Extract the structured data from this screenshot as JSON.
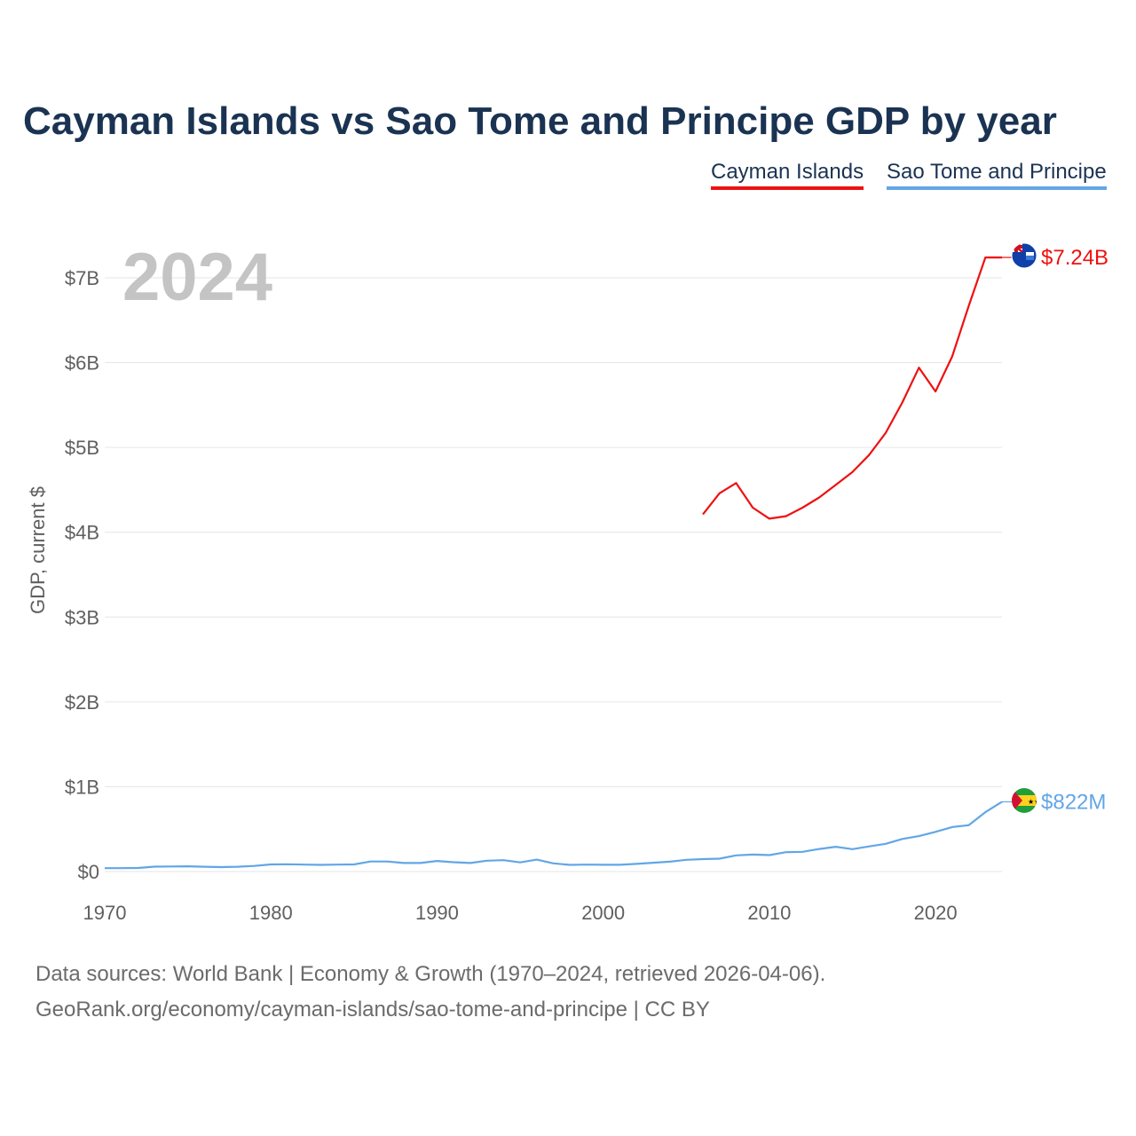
{
  "title": "Cayman Islands vs Sao Tome and Principe GDP by year",
  "legend": {
    "a": "Cayman Islands",
    "b": "Sao Tome and Principe"
  },
  "year_label": "2024",
  "source_line1": "Data sources: World Bank | Economy & Growth (1970–2024, retrieved 2026-04-06).",
  "source_line2": "GeoRank.org/economy/cayman-islands/sao-tome-and-principe | CC BY",
  "colors": {
    "cayman": "#ee1111",
    "sao_tome": "#62a6e6",
    "title": "#1b3352",
    "grid": "#e6e6e6",
    "axis_text": "#5f5f5f",
    "year_watermark": "#c4c4c4"
  },
  "chart_data": {
    "type": "line",
    "title": "Cayman Islands vs Sao Tome and Principe GDP by year",
    "xlabel": "",
    "ylabel": "GDP, current $",
    "xlim": [
      1970,
      2024
    ],
    "ylim": [
      0,
      7.5
    ],
    "y_unit": "billion USD",
    "x_ticks": [
      1970,
      1980,
      1990,
      2000,
      2010,
      2020
    ],
    "y_ticks": [
      {
        "value": 0,
        "label": "$0"
      },
      {
        "value": 1,
        "label": "$1B"
      },
      {
        "value": 2,
        "label": "$2B"
      },
      {
        "value": 3,
        "label": "$3B"
      },
      {
        "value": 4,
        "label": "$4B"
      },
      {
        "value": 5,
        "label": "$5B"
      },
      {
        "value": 6,
        "label": "$6B"
      },
      {
        "value": 7,
        "label": "$7B"
      }
    ],
    "grid": true,
    "legend_position": "top-right",
    "series": [
      {
        "name": "Cayman Islands",
        "color": "#ee1111",
        "end_label": "$7.24B",
        "flag": "cayman-islands-flag",
        "x": [
          2006,
          2007,
          2008,
          2009,
          2010,
          2011,
          2012,
          2013,
          2014,
          2015,
          2016,
          2017,
          2018,
          2019,
          2020,
          2021,
          2022,
          2023,
          2024
        ],
        "values": [
          4.21,
          4.46,
          4.58,
          4.29,
          4.16,
          4.19,
          4.29,
          4.41,
          4.56,
          4.71,
          4.91,
          5.17,
          5.53,
          5.94,
          5.66,
          6.07,
          6.67,
          7.24,
          7.24
        ]
      },
      {
        "name": "Sao Tome and Principe",
        "color": "#62a6e6",
        "end_label": "$822M",
        "flag": "sao-tome-and-principe-flag",
        "x": [
          1970,
          1971,
          1972,
          1973,
          1974,
          1975,
          1976,
          1977,
          1978,
          1979,
          1980,
          1981,
          1982,
          1983,
          1984,
          1985,
          1986,
          1987,
          1988,
          1989,
          1990,
          1991,
          1992,
          1993,
          1994,
          1995,
          1996,
          1997,
          1998,
          1999,
          2000,
          2001,
          2002,
          2003,
          2004,
          2005,
          2006,
          2007,
          2008,
          2009,
          2010,
          2011,
          2012,
          2013,
          2014,
          2015,
          2016,
          2017,
          2018,
          2019,
          2020,
          2021,
          2022,
          2023,
          2024
        ],
        "values": [
          0.04,
          0.04,
          0.042,
          0.058,
          0.06,
          0.062,
          0.056,
          0.052,
          0.057,
          0.066,
          0.084,
          0.086,
          0.082,
          0.078,
          0.082,
          0.084,
          0.118,
          0.118,
          0.1,
          0.1,
          0.124,
          0.11,
          0.1,
          0.128,
          0.134,
          0.108,
          0.14,
          0.096,
          0.078,
          0.082,
          0.08,
          0.08,
          0.09,
          0.104,
          0.116,
          0.138,
          0.146,
          0.152,
          0.19,
          0.2,
          0.194,
          0.228,
          0.232,
          0.266,
          0.292,
          0.264,
          0.296,
          0.326,
          0.384,
          0.418,
          0.468,
          0.524,
          0.546,
          0.7,
          0.822
        ]
      }
    ]
  }
}
